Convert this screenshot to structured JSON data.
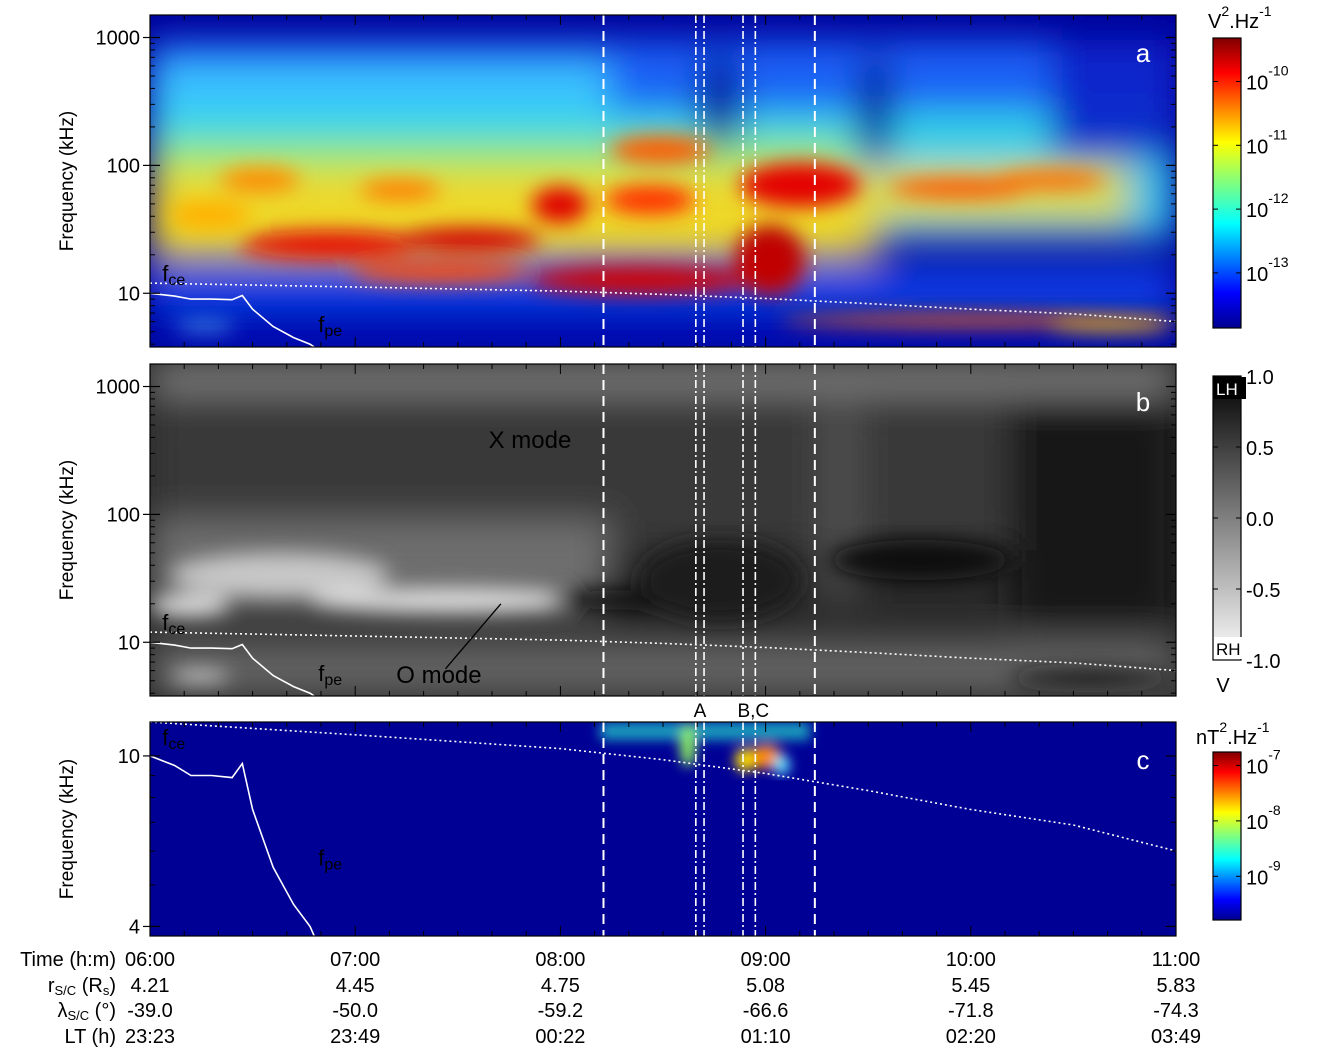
{
  "chart_data": {
    "type": "heatmap",
    "time_axis": {
      "label": "Time (h:m)",
      "ticks": [
        "06:00",
        "07:00",
        "08:00",
        "09:00",
        "10:00",
        "11:00"
      ],
      "range_hours": [
        6.0,
        11.0
      ]
    },
    "ephemeris": [
      {
        "label": "r_S/C (R_s)",
        "label_main": "r",
        "label_sub": "S/C",
        "label_tail": " (R",
        "label_tail_sub": "s",
        "label_end": ")",
        "values": [
          "4.21",
          "4.45",
          "4.75",
          "5.08",
          "5.45",
          "5.83"
        ]
      },
      {
        "label": "λ_S/C (°)",
        "label_main": "λ",
        "label_sub": "S/C",
        "label_tail": " (°)",
        "label_tail_sub": "",
        "label_end": "",
        "values": [
          "-39.0",
          "-50.0",
          "-59.2",
          "-66.6",
          "-71.8",
          "-74.3"
        ]
      },
      {
        "label": "LT (h)",
        "label_main": "LT (h)",
        "label_sub": "",
        "label_tail": "",
        "label_tail_sub": "",
        "label_end": "",
        "values": [
          "23:23",
          "23:49",
          "00:22",
          "01:10",
          "02:20",
          "03:49"
        ]
      }
    ],
    "event_markers": {
      "dashed_hours": [
        8.21,
        9.24
      ],
      "dashdot_hours": [
        8.66,
        8.7,
        8.89,
        8.95
      ],
      "labels": [
        {
          "text": "A",
          "hour": 8.68
        },
        {
          "text": "B,C",
          "hour": 8.94
        }
      ]
    },
    "panels": [
      {
        "id": "a",
        "panel_label": "a",
        "ylabel": "Frequency (kHz)",
        "yscale": "log",
        "ylim": [
          3.8,
          1500
        ],
        "yticks": [
          {
            "value": 10,
            "label": "10"
          },
          {
            "value": 100,
            "label": "100"
          },
          {
            "value": 1000,
            "label": "1000"
          }
        ],
        "colormap": "jet",
        "colorbar_unit": {
          "base": "V",
          "sup1": "2",
          "mid": ".Hz",
          "sup2": "-1"
        },
        "colorbar_ticks": [
          {
            "base": "10",
            "exp": "-10",
            "frac": 0.85
          },
          {
            "base": "10",
            "exp": "-11",
            "frac": 0.63
          },
          {
            "base": "10",
            "exp": "-12",
            "frac": 0.41
          },
          {
            "base": "10",
            "exp": "-13",
            "frac": 0.19
          }
        ],
        "annotations": [
          {
            "text": "f",
            "sub": "ce",
            "hour": 6.06,
            "freq": 12.5,
            "color": "#ffffff"
          },
          {
            "text": "f",
            "sub": "pe",
            "hour": 6.82,
            "freq": 5.0,
            "color": "#ffffff"
          }
        ],
        "fce_curve": [
          [
            6.0,
            12.0
          ],
          [
            7.0,
            11.2
          ],
          [
            8.0,
            10.4
          ],
          [
            8.5,
            9.8
          ],
          [
            9.0,
            9.1
          ],
          [
            9.5,
            8.3
          ],
          [
            10.0,
            7.5
          ],
          [
            10.5,
            6.9
          ],
          [
            11.0,
            6.0
          ]
        ],
        "fpe_curve": [
          [
            6.0,
            10.0
          ],
          [
            6.12,
            9.5
          ],
          [
            6.2,
            9.0
          ],
          [
            6.3,
            9.0
          ],
          [
            6.4,
            8.9
          ],
          [
            6.45,
            9.6
          ],
          [
            6.5,
            7.5
          ],
          [
            6.6,
            5.5
          ],
          [
            6.7,
            4.5
          ],
          [
            6.78,
            4.0
          ],
          [
            6.8,
            3.8
          ]
        ]
      },
      {
        "id": "b",
        "panel_label": "b",
        "ylabel": "Frequency (kHz)",
        "yscale": "log",
        "ylim": [
          3.8,
          1500
        ],
        "yticks": [
          {
            "value": 10,
            "label": "10"
          },
          {
            "value": 100,
            "label": "100"
          },
          {
            "value": 1000,
            "label": "1000"
          }
        ],
        "colormap": "gray",
        "colorbar_unit": {
          "base": "V",
          "sup1": "",
          "mid": "",
          "sup2": ""
        },
        "colorbar_ticks": [
          {
            "base": "1.0",
            "exp": "",
            "frac": 1.0
          },
          {
            "base": "0.5",
            "exp": "",
            "frac": 0.75
          },
          {
            "base": "0.0",
            "exp": "",
            "frac": 0.5
          },
          {
            "base": "-0.5",
            "exp": "",
            "frac": 0.25
          },
          {
            "base": "-1.0",
            "exp": "",
            "frac": 0.0
          }
        ],
        "colorbar_end_labels": {
          "top": "LH",
          "bottom": "RH"
        },
        "annotations": [
          {
            "text": "X mode",
            "sub": "",
            "hour": 7.65,
            "freq": 330,
            "color": "#ffffff"
          },
          {
            "text": "O mode",
            "sub": "",
            "hour": 7.2,
            "freq": 4.8,
            "color": "#000000"
          },
          {
            "text": "f",
            "sub": "ce",
            "hour": 6.06,
            "freq": 12.5,
            "color": "#ffffff"
          },
          {
            "text": "f",
            "sub": "pe",
            "hour": 6.82,
            "freq": 5.0,
            "color": "#ffffff"
          }
        ],
        "fce_curve": [
          [
            6.0,
            12.0
          ],
          [
            7.0,
            11.2
          ],
          [
            8.0,
            10.4
          ],
          [
            8.5,
            9.8
          ],
          [
            9.0,
            9.1
          ],
          [
            9.5,
            8.3
          ],
          [
            10.0,
            7.5
          ],
          [
            10.5,
            6.9
          ],
          [
            11.0,
            6.0
          ]
        ],
        "fpe_curve": [
          [
            6.0,
            10.0
          ],
          [
            6.12,
            9.5
          ],
          [
            6.2,
            9.0
          ],
          [
            6.3,
            9.0
          ],
          [
            6.4,
            8.9
          ],
          [
            6.45,
            9.6
          ],
          [
            6.5,
            7.5
          ],
          [
            6.6,
            5.5
          ],
          [
            6.7,
            4.5
          ],
          [
            6.78,
            4.0
          ],
          [
            6.8,
            3.8
          ]
        ]
      },
      {
        "id": "c",
        "panel_label": "c",
        "ylabel": "Frequency (kHz)",
        "yscale": "log",
        "ylim": [
          3.8,
          12.0
        ],
        "yticks": [
          {
            "value": 4,
            "label": "4"
          },
          {
            "value": 10,
            "label": "10"
          }
        ],
        "colormap": "jet",
        "colorbar_unit": {
          "base": "nT",
          "sup1": "2",
          "mid": ".Hz",
          "sup2": "-1"
        },
        "colorbar_ticks": [
          {
            "base": "10",
            "exp": "-7",
            "frac": 0.92
          },
          {
            "base": "10",
            "exp": "-8",
            "frac": 0.59
          },
          {
            "base": "10",
            "exp": "-9",
            "frac": 0.26
          }
        ],
        "annotations": [
          {
            "text": "f",
            "sub": "ce",
            "hour": 6.06,
            "freq": 10.6,
            "color": "#ffffff"
          },
          {
            "text": "f",
            "sub": "pe",
            "hour": 6.82,
            "freq": 5.55,
            "color": "#ffffff"
          }
        ],
        "fce_curve": [
          [
            6.0,
            12.0
          ],
          [
            7.0,
            11.2
          ],
          [
            8.0,
            10.4
          ],
          [
            8.5,
            9.8
          ],
          [
            9.0,
            9.1
          ],
          [
            9.5,
            8.3
          ],
          [
            10.0,
            7.5
          ],
          [
            10.5,
            6.9
          ],
          [
            11.0,
            6.0
          ]
        ],
        "fpe_curve": [
          [
            6.0,
            10.0
          ],
          [
            6.12,
            9.5
          ],
          [
            6.2,
            9.0
          ],
          [
            6.3,
            9.0
          ],
          [
            6.4,
            8.9
          ],
          [
            6.45,
            9.6
          ],
          [
            6.5,
            7.5
          ],
          [
            6.6,
            5.5
          ],
          [
            6.7,
            4.5
          ],
          [
            6.78,
            4.0
          ],
          [
            6.8,
            3.8
          ]
        ]
      }
    ]
  }
}
